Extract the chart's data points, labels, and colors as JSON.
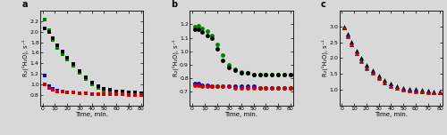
{
  "panel_a": {
    "label": "a",
    "ylabel": "R₂(¹H₂O), s⁻¹",
    "xlabel": "Time, min.",
    "ylim": [
      0.6,
      2.4
    ],
    "yticks": [
      0.8,
      1.0,
      1.2,
      1.4,
      1.6,
      1.8,
      2.0,
      2.2
    ],
    "xlim": [
      -2,
      82
    ],
    "xticks": [
      0,
      10,
      20,
      30,
      40,
      50,
      60,
      70,
      80
    ],
    "series": [
      {
        "color": "#008000",
        "marker": "s",
        "x": [
          2,
          5,
          8,
          12,
          16,
          20,
          25,
          30,
          35,
          40,
          45,
          50,
          55,
          60,
          65,
          70,
          75,
          80
        ],
        "y": [
          2.23,
          2.03,
          1.85,
          1.7,
          1.58,
          1.48,
          1.35,
          1.22,
          1.1,
          1.0,
          0.93,
          0.88,
          0.85,
          0.83,
          0.82,
          0.81,
          0.8,
          0.79
        ]
      },
      {
        "color": "#000000",
        "marker": "s",
        "x": [
          2,
          5,
          8,
          12,
          16,
          20,
          25,
          30,
          35,
          40,
          45,
          50,
          55,
          60,
          65,
          70,
          75,
          80
        ],
        "y": [
          2.07,
          2.0,
          1.88,
          1.75,
          1.62,
          1.5,
          1.38,
          1.25,
          1.13,
          1.03,
          0.97,
          0.92,
          0.89,
          0.87,
          0.86,
          0.85,
          0.84,
          0.83
        ]
      },
      {
        "color": "#0000CC",
        "marker": "s",
        "x": [
          2,
          5,
          8,
          12,
          16,
          20,
          25,
          30,
          35,
          40,
          45,
          50,
          55,
          60,
          65,
          70,
          75,
          80
        ],
        "y": [
          1.17,
          0.97,
          0.91,
          0.88,
          0.86,
          0.85,
          0.84,
          0.83,
          0.83,
          0.82,
          0.82,
          0.82,
          0.81,
          0.81,
          0.81,
          0.8,
          0.8,
          0.8
        ]
      },
      {
        "color": "#CC0000",
        "marker": "s",
        "x": [
          2,
          5,
          8,
          12,
          16,
          20,
          25,
          30,
          35,
          40,
          45,
          50,
          55,
          60,
          65,
          70,
          75,
          80
        ],
        "y": [
          1.0,
          0.93,
          0.89,
          0.87,
          0.86,
          0.85,
          0.84,
          0.83,
          0.83,
          0.82,
          0.82,
          0.82,
          0.81,
          0.81,
          0.81,
          0.8,
          0.8,
          0.8
        ]
      }
    ]
  },
  "panel_b": {
    "label": "b",
    "ylabel": "R₂(¹H₂O), s⁻¹",
    "xlabel": "Time, min.",
    "ylim": [
      0.6,
      1.3
    ],
    "yticks": [
      0.7,
      0.8,
      0.9,
      1.0,
      1.1,
      1.2
    ],
    "xlim": [
      -2,
      82
    ],
    "xticks": [
      0,
      10,
      20,
      30,
      40,
      50,
      60,
      70,
      80
    ],
    "series": [
      {
        "color": "#008000",
        "marker": "o",
        "x": [
          2,
          5,
          8,
          12,
          16,
          20,
          25,
          30,
          35,
          40,
          45,
          50,
          55,
          60,
          65,
          70,
          75,
          80
        ],
        "y": [
          1.18,
          1.19,
          1.17,
          1.15,
          1.12,
          1.05,
          0.97,
          0.9,
          0.87,
          0.85,
          0.84,
          0.83,
          0.83,
          0.83,
          0.83,
          0.83,
          0.83,
          0.83
        ]
      },
      {
        "color": "#000000",
        "marker": "o",
        "x": [
          2,
          5,
          8,
          12,
          16,
          20,
          25,
          30,
          35,
          40,
          45,
          50,
          55,
          60,
          65,
          70,
          75,
          80
        ],
        "y": [
          1.16,
          1.16,
          1.14,
          1.12,
          1.1,
          1.02,
          0.93,
          0.88,
          0.86,
          0.84,
          0.84,
          0.83,
          0.83,
          0.83,
          0.83,
          0.83,
          0.83,
          0.83
        ]
      },
      {
        "color": "#0000CC",
        "marker": "o",
        "x": [
          2,
          5,
          8,
          12,
          16,
          20,
          25,
          30,
          35,
          40,
          45,
          50,
          55,
          60,
          65,
          70,
          75,
          80
        ],
        "y": [
          0.76,
          0.76,
          0.75,
          0.75,
          0.74,
          0.74,
          0.74,
          0.74,
          0.74,
          0.74,
          0.74,
          0.74,
          0.73,
          0.73,
          0.73,
          0.73,
          0.73,
          0.73
        ]
      },
      {
        "color": "#CC0000",
        "marker": "o",
        "x": [
          2,
          5,
          8,
          12,
          16,
          20,
          25,
          30,
          35,
          40,
          45,
          50,
          55,
          60,
          65,
          70,
          75,
          80
        ],
        "y": [
          0.75,
          0.75,
          0.74,
          0.74,
          0.74,
          0.74,
          0.74,
          0.74,
          0.73,
          0.73,
          0.73,
          0.73,
          0.73,
          0.73,
          0.73,
          0.73,
          0.73,
          0.73
        ]
      }
    ]
  },
  "panel_c": {
    "label": "c",
    "ylabel": "R₂(¹H₂O), s⁻¹",
    "xlabel": "Time, min.",
    "ylim": [
      0.5,
      3.5
    ],
    "yticks": [
      1.0,
      1.5,
      2.0,
      2.5,
      3.0
    ],
    "xlim": [
      -2,
      82
    ],
    "xticks": [
      0,
      10,
      20,
      30,
      40,
      50,
      60,
      70,
      80
    ],
    "series": [
      {
        "color": "#008000",
        "marker": "^",
        "x": [
          2,
          5,
          8,
          12,
          16,
          20,
          25,
          30,
          35,
          40,
          45,
          50,
          55,
          60,
          65,
          70,
          75,
          80
        ],
        "y": [
          2.98,
          2.75,
          2.48,
          2.2,
          1.97,
          1.75,
          1.6,
          1.43,
          1.28,
          1.18,
          1.1,
          1.05,
          1.02,
          1.0,
          0.98,
          0.96,
          0.94,
          0.92
        ]
      },
      {
        "color": "#000000",
        "marker": "^",
        "x": [
          2,
          5,
          8,
          12,
          16,
          20,
          25,
          30,
          35,
          40,
          45,
          50,
          55,
          60,
          65,
          70,
          75,
          80
        ],
        "y": [
          3.0,
          2.78,
          2.52,
          2.24,
          2.0,
          1.78,
          1.62,
          1.45,
          1.3,
          1.2,
          1.12,
          1.06,
          1.03,
          1.01,
          0.99,
          0.97,
          0.95,
          0.93
        ]
      },
      {
        "color": "#0000CC",
        "marker": "^",
        "x": [
          2,
          5,
          8,
          12,
          16,
          20,
          25,
          30,
          35,
          40,
          45,
          50,
          55,
          60,
          65,
          70,
          75,
          80
        ],
        "y": [
          2.97,
          2.72,
          2.44,
          2.16,
          1.93,
          1.7,
          1.55,
          1.38,
          1.23,
          1.13,
          1.06,
          1.02,
          0.99,
          0.97,
          0.95,
          0.94,
          0.92,
          0.91
        ]
      },
      {
        "color": "#CC0000",
        "marker": "^",
        "x": [
          2,
          5,
          8,
          12,
          16,
          20,
          25,
          30,
          35,
          40,
          45,
          50,
          55,
          60,
          65,
          70,
          75,
          80
        ],
        "y": [
          2.96,
          2.7,
          2.42,
          2.14,
          1.91,
          1.68,
          1.53,
          1.36,
          1.21,
          1.11,
          1.04,
          1.0,
          0.97,
          0.95,
          0.93,
          0.92,
          0.91,
          0.9
        ]
      }
    ]
  },
  "figure_bg": "#d8d8d8",
  "axes_bg": "#d8d8d8",
  "marker_size": 3.5,
  "linewidth": 0
}
